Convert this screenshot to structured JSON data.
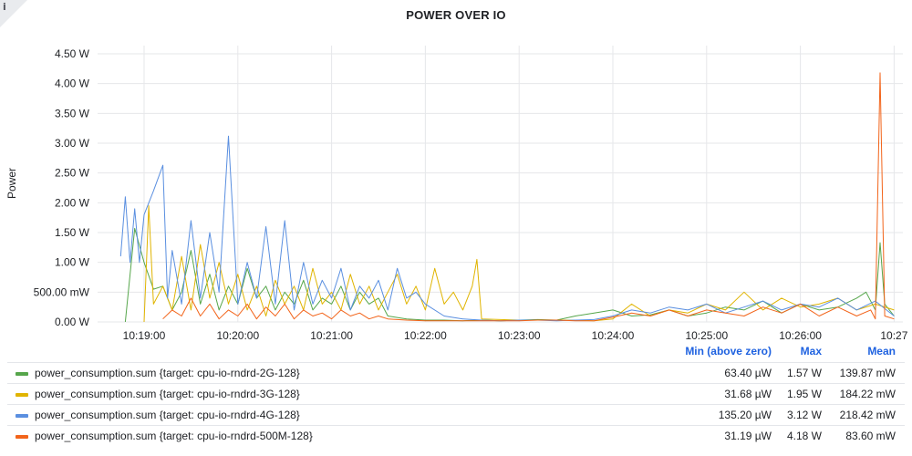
{
  "panel": {
    "title": "POWER OVER IO",
    "info_icon": "info-icon"
  },
  "legend": {
    "headers": {
      "min": "Min (above zero)",
      "max": "Max",
      "mean": "Mean"
    },
    "rows": [
      {
        "name": "power_consumption.sum {target: cpu-io-rndrd-2G-128}",
        "color": "#56a64b",
        "min": "63.40 µW",
        "max": "1.57 W",
        "mean": "139.87 mW"
      },
      {
        "name": "power_consumption.sum {target: cpu-io-rndrd-3G-128}",
        "color": "#e0b400",
        "min": "31.68 µW",
        "max": "1.95 W",
        "mean": "184.22 mW"
      },
      {
        "name": "power_consumption.sum {target: cpu-io-rndrd-4G-128}",
        "color": "#5a8fe0",
        "min": "135.20 µW",
        "max": "3.12 W",
        "mean": "218.42 mW"
      },
      {
        "name": "power_consumption.sum {target: cpu-io-rndrd-500M-128}",
        "color": "#f2641a",
        "min": "31.19 µW",
        "max": "4.18 W",
        "mean": "83.60 mW"
      }
    ]
  },
  "chart_data": {
    "type": "line",
    "title": "POWER OVER IO",
    "xlabel": "",
    "ylabel": "Power",
    "x_ticks": [
      "10:19:00",
      "10:20:00",
      "10:21:00",
      "10:22:00",
      "10:23:00",
      "10:24:00",
      "10:25:00",
      "10:26:00",
      "10:27"
    ],
    "y_ticks": [
      "0.00 W",
      "500.00 mW",
      "1.00 W",
      "1.50 W",
      "2.00 W",
      "2.50 W",
      "3.00 W",
      "3.50 W",
      "4.00 W",
      "4.50 W"
    ],
    "x_unit": "minutes after 10:18:00",
    "xlim": [
      0.5,
      9.0
    ],
    "ylim": [
      0,
      4.7
    ],
    "grid": true,
    "legend_position": "bottom",
    "series": [
      {
        "name": "power_consumption.sum {target: cpu-io-rndrd-2G-128}",
        "color": "#56a64b",
        "x": [
          0.8,
          0.9,
          1.0,
          1.1,
          1.2,
          1.3,
          1.4,
          1.5,
          1.6,
          1.7,
          1.8,
          1.9,
          2.0,
          2.1,
          2.2,
          2.3,
          2.4,
          2.5,
          2.6,
          2.7,
          2.8,
          2.9,
          3.0,
          3.1,
          3.2,
          3.3,
          3.4,
          3.5,
          3.6,
          3.8,
          4.0,
          4.2,
          4.4,
          4.6,
          4.8,
          5.0,
          5.2,
          5.4,
          5.6,
          5.8,
          6.0,
          6.2,
          6.4,
          6.6,
          6.8,
          7.0,
          7.2,
          7.4,
          7.6,
          7.8,
          8.0,
          8.2,
          8.4,
          8.6,
          8.7,
          8.8,
          8.85,
          8.9,
          9.0
        ],
        "y": [
          0.0,
          1.57,
          1.0,
          0.55,
          0.6,
          0.2,
          0.5,
          1.2,
          0.3,
          0.8,
          0.2,
          0.6,
          0.3,
          0.9,
          0.4,
          0.6,
          0.2,
          0.5,
          0.3,
          0.7,
          0.2,
          0.4,
          0.3,
          0.6,
          0.2,
          0.5,
          0.3,
          0.4,
          0.1,
          0.05,
          0.03,
          0.03,
          0.02,
          0.03,
          0.02,
          0.03,
          0.04,
          0.03,
          0.1,
          0.15,
          0.2,
          0.1,
          0.12,
          0.2,
          0.1,
          0.15,
          0.25,
          0.2,
          0.35,
          0.15,
          0.3,
          0.2,
          0.25,
          0.4,
          0.5,
          0.2,
          1.33,
          0.3,
          0.1
        ]
      },
      {
        "name": "power_consumption.sum {target: cpu-io-rndrd-3G-128}",
        "color": "#e0b400",
        "x": [
          1.0,
          1.05,
          1.1,
          1.2,
          1.3,
          1.4,
          1.5,
          1.6,
          1.7,
          1.8,
          1.9,
          2.0,
          2.1,
          2.2,
          2.3,
          2.4,
          2.5,
          2.6,
          2.7,
          2.8,
          2.9,
          3.0,
          3.1,
          3.2,
          3.3,
          3.4,
          3.5,
          3.6,
          3.7,
          3.8,
          3.9,
          4.0,
          4.1,
          4.2,
          4.3,
          4.4,
          4.5,
          4.55,
          4.6,
          4.8,
          5.0,
          5.2,
          5.4,
          5.6,
          5.8,
          6.0,
          6.2,
          6.4,
          6.6,
          6.8,
          7.0,
          7.2,
          7.4,
          7.6,
          7.8,
          8.0,
          8.2,
          8.4,
          8.6,
          8.8,
          9.0
        ],
        "y": [
          0.0,
          1.95,
          0.3,
          0.6,
          0.2,
          1.1,
          0.2,
          1.3,
          0.4,
          1.0,
          0.3,
          0.8,
          0.2,
          0.6,
          0.1,
          0.7,
          0.3,
          0.6,
          0.2,
          0.9,
          0.3,
          0.5,
          0.2,
          0.8,
          0.3,
          0.6,
          0.2,
          0.5,
          0.8,
          0.3,
          0.6,
          0.2,
          0.9,
          0.3,
          0.5,
          0.2,
          0.6,
          1.05,
          0.05,
          0.04,
          0.03,
          0.03,
          0.03,
          0.03,
          0.02,
          0.05,
          0.3,
          0.1,
          0.2,
          0.15,
          0.3,
          0.2,
          0.5,
          0.2,
          0.4,
          0.25,
          0.3,
          0.4,
          0.2,
          0.3,
          0.2
        ]
      },
      {
        "name": "power_consumption.sum {target: cpu-io-rndrd-4G-128}",
        "color": "#5a8fe0",
        "x": [
          0.75,
          0.8,
          0.85,
          0.9,
          0.95,
          1.0,
          1.1,
          1.2,
          1.25,
          1.3,
          1.4,
          1.5,
          1.6,
          1.7,
          1.8,
          1.9,
          2.0,
          2.1,
          2.2,
          2.3,
          2.4,
          2.5,
          2.6,
          2.7,
          2.8,
          2.9,
          3.0,
          3.1,
          3.2,
          3.3,
          3.4,
          3.5,
          3.6,
          3.7,
          3.8,
          3.9,
          4.0,
          4.2,
          4.4,
          4.6,
          4.8,
          5.0,
          5.2,
          5.4,
          5.6,
          5.8,
          6.0,
          6.2,
          6.4,
          6.6,
          6.8,
          7.0,
          7.2,
          7.4,
          7.6,
          7.8,
          8.0,
          8.2,
          8.4,
          8.6,
          8.8,
          9.0
        ],
        "y": [
          1.1,
          2.1,
          1.0,
          1.9,
          1.0,
          1.8,
          2.2,
          2.63,
          0.4,
          1.2,
          0.3,
          1.7,
          0.4,
          1.5,
          0.5,
          3.12,
          0.3,
          1.0,
          0.4,
          1.6,
          0.3,
          1.7,
          0.2,
          1.0,
          0.3,
          0.7,
          0.4,
          0.9,
          0.2,
          0.6,
          0.4,
          0.7,
          0.2,
          0.9,
          0.4,
          0.5,
          0.3,
          0.1,
          0.05,
          0.03,
          0.02,
          0.03,
          0.03,
          0.02,
          0.03,
          0.04,
          0.1,
          0.2,
          0.15,
          0.25,
          0.2,
          0.3,
          0.15,
          0.25,
          0.35,
          0.2,
          0.3,
          0.25,
          0.4,
          0.2,
          0.35,
          0.1
        ]
      },
      {
        "name": "power_consumption.sum {target: cpu-io-rndrd-500M-128}",
        "color": "#f2641a",
        "x": [
          1.2,
          1.3,
          1.4,
          1.5,
          1.6,
          1.7,
          1.8,
          1.9,
          2.0,
          2.1,
          2.2,
          2.3,
          2.4,
          2.5,
          2.6,
          2.7,
          2.8,
          2.9,
          3.0,
          3.1,
          3.2,
          3.3,
          3.4,
          3.5,
          3.6,
          3.8,
          4.0,
          4.2,
          4.4,
          4.6,
          4.8,
          5.0,
          5.2,
          5.4,
          5.6,
          5.8,
          6.0,
          6.2,
          6.4,
          6.6,
          6.8,
          7.0,
          7.2,
          7.4,
          7.6,
          7.8,
          8.0,
          8.2,
          8.4,
          8.6,
          8.75,
          8.8,
          8.85,
          8.9,
          9.0
        ],
        "y": [
          0.05,
          0.2,
          0.1,
          0.4,
          0.1,
          0.3,
          0.05,
          0.2,
          0.1,
          0.3,
          0.05,
          0.25,
          0.1,
          0.3,
          0.05,
          0.2,
          0.1,
          0.15,
          0.05,
          0.2,
          0.1,
          0.15,
          0.05,
          0.1,
          0.05,
          0.03,
          0.02,
          0.02,
          0.02,
          0.02,
          0.02,
          0.02,
          0.03,
          0.03,
          0.02,
          0.02,
          0.08,
          0.15,
          0.1,
          0.2,
          0.1,
          0.2,
          0.15,
          0.1,
          0.25,
          0.15,
          0.3,
          0.1,
          0.25,
          0.1,
          0.2,
          0.05,
          4.18,
          0.1,
          0.05
        ]
      }
    ]
  }
}
